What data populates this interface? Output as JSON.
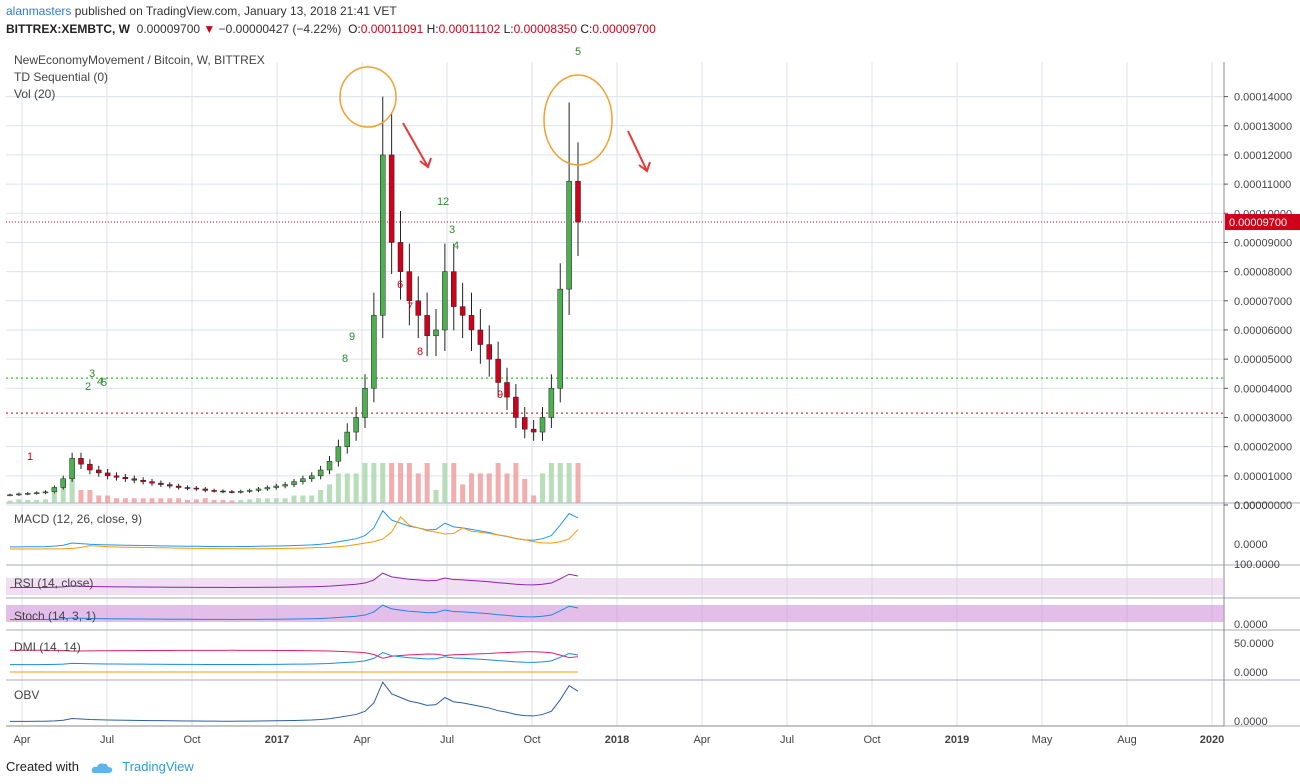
{
  "header": {
    "author": "alanmasters",
    "published_text": "published on TradingView.com, January 13, 2018 21:41 VET",
    "symbol": "BITTREX:XEMBTC, W",
    "last_price": "0.00009700",
    "change": "−0.00000427 (−4.22%)",
    "ohlc": {
      "O": "0.00011091",
      "H": "0.00011102",
      "L": "0.00008350",
      "C": "0.00009700"
    }
  },
  "legend": {
    "title": "NewEconomyMovement / Bitcoin, W, BITTREX",
    "td": "TD Sequential (0)",
    "vol": "Vol (20)"
  },
  "indicators": {
    "macd": "MACD (12, 26, close, 9)",
    "rsi": "RSI (14, close)",
    "stoch": "Stoch (14, 3, 1)",
    "dmi": "DMI (14, 14)",
    "obv": "OBV"
  },
  "colors": {
    "up": "#4caf50",
    "down": "#d0021b",
    "grid": "#dbe3ec",
    "annotation": "#f0a030",
    "arrow": "#e53935",
    "price_tag": "#d0021b",
    "support": "#22cc22",
    "resistance": "#e03030"
  },
  "chart_data": {
    "type": "candlestick",
    "title": "NewEconomyMovement / Bitcoin, W, BITTREX",
    "current_price": 9.7e-05,
    "price_tag": "0.00009700",
    "y_ticks": [
      "0.00014000",
      "0.00013000",
      "0.00012000",
      "0.00011000",
      "0.00010000",
      "0.00009000",
      "0.00008000",
      "0.00007000",
      "0.00006000",
      "0.00005000",
      "0.00004000",
      "0.00003000",
      "0.00002000",
      "0.00001000",
      "0.00000000"
    ],
    "ylim": [
      0,
      0.000145
    ],
    "x_ticks": [
      "Apr",
      "Jul",
      "Oct",
      "2017",
      "Apr",
      "Jul",
      "Oct",
      "2018",
      "Apr",
      "Jul",
      "Oct",
      "2019",
      "May",
      "Aug",
      "2020"
    ],
    "support_level": 4.35e-05,
    "resistance_level": 3.15e-05,
    "candles_weekly_close": [
      3.5e-06,
      3.8e-06,
      4e-06,
      4.2e-06,
      4.5e-06,
      6e-06,
      9e-06,
      1.6e-05,
      1.4e-05,
      1.2e-05,
      1.1e-05,
      1e-05,
      9.5e-06,
      9e-06,
      8.5e-06,
      8e-06,
      7.5e-06,
      7e-06,
      6.5e-06,
      6e-06,
      5.8e-06,
      5.5e-06,
      5e-06,
      4.8e-06,
      4.6e-06,
      4.5e-06,
      4.7e-06,
      5e-06,
      5.5e-06,
      6e-06,
      6.5e-06,
      7e-06,
      8e-06,
      9e-06,
      1e-05,
      1.2e-05,
      1.5e-05,
      2e-05,
      2.5e-05,
      3e-05,
      4e-05,
      6.5e-05,
      0.00012,
      9e-05,
      8e-05,
      7e-05,
      6.5e-05,
      5.8e-05,
      6e-05,
      8e-05,
      6.8e-05,
      6.5e-05,
      6e-05,
      5.5e-05,
      5e-05,
      4.2e-05,
      3.7e-05,
      3e-05,
      2.6e-05,
      2.5e-05,
      3e-05,
      4e-05,
      7.4e-05,
      0.000111,
      9.7e-05
    ],
    "td_sequential_labels": [
      "1",
      "2",
      "3",
      "4",
      "5",
      "8",
      "9",
      "1",
      "2",
      "3",
      "4",
      "5",
      "6",
      "7",
      "8",
      "9"
    ],
    "indicators": {
      "macd_ticks": [
        "0.0000",
        "0.0000"
      ],
      "rsi_ticks": [
        "100.0000"
      ],
      "stoch_ticks": [
        "0.0000"
      ],
      "dmi_ticks": [
        "50.0000",
        "0.0000"
      ],
      "obv_ticks": [
        "0.0000"
      ]
    }
  },
  "footer": {
    "created_with": "Created with",
    "brand": "TradingView"
  }
}
